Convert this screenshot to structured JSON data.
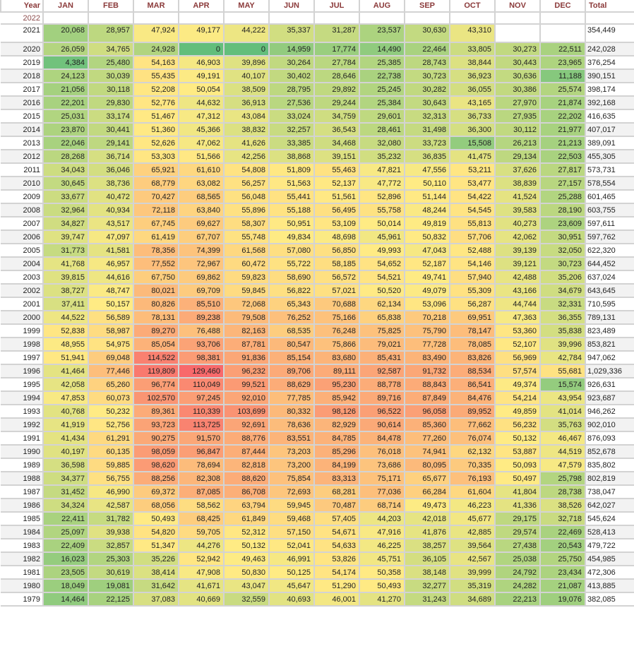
{
  "header": {
    "year": "Year",
    "months": [
      "JAN",
      "FEB",
      "MAR",
      "APR",
      "MAY",
      "JUN",
      "JUL",
      "AUG",
      "SEP",
      "OCT",
      "NOV",
      "DEC"
    ],
    "total": "Total"
  },
  "color_scale": {
    "low": "#63BE7B",
    "mid": "#FFEB84",
    "high": "#F8696B",
    "min_value": 0,
    "mid_value": 50000,
    "max_value": 129460
  },
  "rows": [
    {
      "year": "2022",
      "values": [
        null,
        null,
        null,
        null,
        null,
        null,
        null,
        null,
        null,
        null,
        null,
        null
      ],
      "total": null
    },
    {
      "year": "2021",
      "values": [
        "20,068",
        "28,957",
        "47,924",
        "49,177",
        "44,222",
        "35,337",
        "31,287",
        "23,537",
        "30,630",
        "43,310",
        null,
        null
      ],
      "total": "354,449"
    },
    {
      "year": "2020",
      "values": [
        "26,059",
        "34,765",
        "24,928",
        "0",
        "0",
        "14,959",
        "17,774",
        "14,490",
        "22,464",
        "33,805",
        "30,273",
        "22,511"
      ],
      "total": "242,028"
    },
    {
      "year": "2019",
      "values": [
        "4,384",
        "25,480",
        "54,163",
        "46,903",
        "39,896",
        "30,264",
        "27,784",
        "25,385",
        "28,743",
        "38,844",
        "30,443",
        "23,965"
      ],
      "total": "376,254"
    },
    {
      "year": "2018",
      "values": [
        "24,123",
        "30,039",
        "55,435",
        "49,191",
        "40,107",
        "30,402",
        "28,646",
        "22,738",
        "30,723",
        "36,923",
        "30,636",
        "11,188"
      ],
      "total": "390,151"
    },
    {
      "year": "2017",
      "values": [
        "21,056",
        "30,118",
        "52,208",
        "50,054",
        "38,509",
        "28,795",
        "29,892",
        "25,245",
        "30,282",
        "36,055",
        "30,386",
        "25,574"
      ],
      "total": "398,174"
    },
    {
      "year": "2016",
      "values": [
        "22,201",
        "29,830",
        "52,776",
        "44,632",
        "36,913",
        "27,536",
        "29,244",
        "25,384",
        "30,643",
        "43,165",
        "27,970",
        "21,874"
      ],
      "total": "392,168"
    },
    {
      "year": "2015",
      "values": [
        "25,031",
        "33,174",
        "51,467",
        "47,312",
        "43,084",
        "33,024",
        "34,759",
        "29,601",
        "32,313",
        "36,733",
        "27,935",
        "22,202"
      ],
      "total": "416,635"
    },
    {
      "year": "2014",
      "values": [
        "23,870",
        "30,441",
        "51,360",
        "45,366",
        "38,832",
        "32,257",
        "36,543",
        "28,461",
        "31,498",
        "36,300",
        "30,112",
        "21,977"
      ],
      "total": "407,017"
    },
    {
      "year": "2013",
      "values": [
        "22,046",
        "29,141",
        "52,626",
        "47,062",
        "41,626",
        "33,385",
        "34,468",
        "32,080",
        "33,723",
        "15,508",
        "26,213",
        "21,213"
      ],
      "total": "389,091"
    },
    {
      "year": "2012",
      "values": [
        "28,268",
        "36,714",
        "53,303",
        "51,566",
        "42,256",
        "38,868",
        "39,151",
        "35,232",
        "36,835",
        "41,475",
        "29,134",
        "22,503"
      ],
      "total": "455,305"
    },
    {
      "year": "2011",
      "values": [
        "34,043",
        "36,046",
        "65,921",
        "61,610",
        "54,808",
        "51,809",
        "55,463",
        "47,821",
        "47,556",
        "53,211",
        "37,626",
        "27,817"
      ],
      "total": "573,731"
    },
    {
      "year": "2010",
      "values": [
        "30,645",
        "38,736",
        "68,779",
        "63,082",
        "56,257",
        "51,563",
        "52,137",
        "47,772",
        "50,110",
        "53,477",
        "38,839",
        "27,157"
      ],
      "total": "578,554"
    },
    {
      "year": "2009",
      "values": [
        "33,677",
        "40,472",
        "70,427",
        "68,565",
        "56,048",
        "55,441",
        "51,561",
        "52,896",
        "51,144",
        "54,422",
        "41,524",
        "25,288"
      ],
      "total": "601,465"
    },
    {
      "year": "2008",
      "values": [
        "32,964",
        "40,934",
        "72,118",
        "63,840",
        "55,896",
        "55,188",
        "56,495",
        "55,758",
        "48,244",
        "54,545",
        "39,583",
        "28,190"
      ],
      "total": "603,755"
    },
    {
      "year": "2007",
      "values": [
        "34,827",
        "43,517",
        "67,745",
        "69,627",
        "58,307",
        "50,951",
        "53,109",
        "50,014",
        "49,819",
        "55,813",
        "40,273",
        "23,609"
      ],
      "total": "597,611"
    },
    {
      "year": "2006",
      "values": [
        "39,747",
        "47,097",
        "61,419",
        "67,707",
        "55,748",
        "49,834",
        "48,698",
        "45,961",
        "50,832",
        "57,706",
        "42,062",
        "30,951"
      ],
      "total": "597,762"
    },
    {
      "year": "2005",
      "values": [
        "31,773",
        "41,581",
        "78,356",
        "74,399",
        "61,568",
        "57,080",
        "56,850",
        "49,993",
        "47,043",
        "52,488",
        "39,139",
        "32,050"
      ],
      "total": "622,320"
    },
    {
      "year": "2004",
      "values": [
        "41,768",
        "46,957",
        "77,552",
        "72,967",
        "60,472",
        "55,722",
        "58,185",
        "54,652",
        "52,187",
        "54,146",
        "39,121",
        "30,723"
      ],
      "total": "644,452"
    },
    {
      "year": "2003",
      "values": [
        "39,815",
        "44,616",
        "67,750",
        "69,862",
        "59,823",
        "58,690",
        "56,572",
        "54,521",
        "49,741",
        "57,940",
        "42,488",
        "35,206"
      ],
      "total": "637,024"
    },
    {
      "year": "2002",
      "values": [
        "38,727",
        "48,747",
        "80,021",
        "69,709",
        "59,845",
        "56,822",
        "57,021",
        "50,520",
        "49,079",
        "55,309",
        "43,166",
        "34,679"
      ],
      "total": "643,645"
    },
    {
      "year": "2001",
      "values": [
        "37,411",
        "50,157",
        "80,826",
        "85,510",
        "72,068",
        "65,343",
        "70,688",
        "62,134",
        "53,096",
        "56,287",
        "44,744",
        "32,331"
      ],
      "total": "710,595"
    },
    {
      "year": "2000",
      "values": [
        "44,522",
        "56,589",
        "78,131",
        "89,238",
        "79,508",
        "76,252",
        "75,166",
        "65,838",
        "70,218",
        "69,951",
        "47,363",
        "36,355"
      ],
      "total": "789,131"
    },
    {
      "year": "1999",
      "values": [
        "52,838",
        "58,987",
        "89,270",
        "76,488",
        "82,163",
        "68,535",
        "76,248",
        "75,825",
        "75,790",
        "78,147",
        "53,360",
        "35,838"
      ],
      "total": "823,489"
    },
    {
      "year": "1998",
      "values": [
        "48,955",
        "54,975",
        "85,054",
        "93,706",
        "87,781",
        "80,547",
        "75,866",
        "79,021",
        "77,728",
        "78,085",
        "52,107",
        "39,996"
      ],
      "total": "853,821"
    },
    {
      "year": "1997",
      "values": [
        "51,941",
        "69,048",
        "114,522",
        "98,381",
        "91,836",
        "85,154",
        "83,680",
        "85,431",
        "83,490",
        "83,826",
        "56,969",
        "42,784"
      ],
      "total": "947,062"
    },
    {
      "year": "1996",
      "values": [
        "41,464",
        "77,446",
        "119,809",
        "129,460",
        "96,232",
        "89,706",
        "89,111",
        "92,587",
        "91,732",
        "88,534",
        "57,574",
        "55,681"
      ],
      "total": "1,029,336"
    },
    {
      "year": "1995",
      "values": [
        "42,058",
        "65,260",
        "96,774",
        "110,049",
        "99,521",
        "88,629",
        "95,230",
        "88,778",
        "88,843",
        "86,541",
        "49,374",
        "15,574"
      ],
      "total": "926,631"
    },
    {
      "year": "1994",
      "values": [
        "47,853",
        "60,073",
        "102,570",
        "97,245",
        "92,010",
        "77,785",
        "85,942",
        "89,716",
        "87,849",
        "84,476",
        "54,214",
        "43,954"
      ],
      "total": "923,687"
    },
    {
      "year": "1993",
      "values": [
        "40,768",
        "50,232",
        "89,361",
        "110,339",
        "103,699",
        "80,332",
        "98,126",
        "96,522",
        "96,058",
        "89,952",
        "49,859",
        "41,014"
      ],
      "total": "946,262"
    },
    {
      "year": "1992",
      "values": [
        "41,919",
        "52,756",
        "93,723",
        "113,725",
        "92,691",
        "78,636",
        "82,929",
        "90,614",
        "85,360",
        "77,662",
        "56,232",
        "35,763"
      ],
      "total": "902,010"
    },
    {
      "year": "1991",
      "values": [
        "41,434",
        "61,291",
        "90,275",
        "91,570",
        "88,776",
        "83,551",
        "84,785",
        "84,478",
        "77,260",
        "76,074",
        "50,132",
        "46,467"
      ],
      "total": "876,093"
    },
    {
      "year": "1990",
      "values": [
        "40,197",
        "60,135",
        "98,059",
        "96,847",
        "87,444",
        "73,203",
        "85,296",
        "76,018",
        "74,941",
        "62,132",
        "53,887",
        "44,519"
      ],
      "total": "852,678"
    },
    {
      "year": "1989",
      "values": [
        "36,598",
        "59,885",
        "98,620",
        "78,694",
        "82,818",
        "73,200",
        "84,199",
        "73,686",
        "80,095",
        "70,335",
        "50,093",
        "47,579"
      ],
      "total": "835,802"
    },
    {
      "year": "1988",
      "values": [
        "34,377",
        "56,755",
        "88,256",
        "82,308",
        "88,620",
        "75,854",
        "83,313",
        "75,171",
        "65,677",
        "76,193",
        "50,497",
        "25,798"
      ],
      "total": "802,819"
    },
    {
      "year": "1987",
      "values": [
        "31,452",
        "46,990",
        "69,372",
        "87,085",
        "86,708",
        "72,693",
        "68,281",
        "77,036",
        "66,284",
        "61,604",
        "41,804",
        "28,738"
      ],
      "total": "738,047"
    },
    {
      "year": "1986",
      "values": [
        "34,324",
        "42,587",
        "68,056",
        "58,562",
        "63,794",
        "59,945",
        "70,487",
        "68,714",
        "49,473",
        "46,223",
        "41,336",
        "38,526"
      ],
      "total": "642,027"
    },
    {
      "year": "1985",
      "values": [
        "22,411",
        "31,782",
        "50,493",
        "68,425",
        "61,849",
        "59,468",
        "57,405",
        "44,203",
        "42,018",
        "45,677",
        "29,175",
        "32,718"
      ],
      "total": "545,624"
    },
    {
      "year": "1984",
      "values": [
        "25,097",
        "39,938",
        "54,820",
        "59,705",
        "52,312",
        "57,150",
        "54,671",
        "47,916",
        "41,876",
        "42,885",
        "29,574",
        "22,469"
      ],
      "total": "528,413"
    },
    {
      "year": "1983",
      "values": [
        "22,409",
        "32,857",
        "51,347",
        "44,276",
        "50,132",
        "52,041",
        "54,633",
        "46,225",
        "38,257",
        "39,564",
        "27,438",
        "20,543"
      ],
      "total": "479,722"
    },
    {
      "year": "1982",
      "values": [
        "16,023",
        "25,303",
        "35,226",
        "52,942",
        "49,463",
        "46,991",
        "53,826",
        "45,751",
        "36,105",
        "42,567",
        "25,038",
        "25,750"
      ],
      "total": "454,985"
    },
    {
      "year": "1981",
      "values": [
        "23,505",
        "30,619",
        "38,414",
        "47,908",
        "50,830",
        "50,125",
        "54,174",
        "50,358",
        "38,148",
        "39,999",
        "24,792",
        "23,434"
      ],
      "total": "472,306"
    },
    {
      "year": "1980",
      "values": [
        "18,049",
        "19,081",
        "31,642",
        "41,671",
        "43,047",
        "45,647",
        "51,290",
        "50,493",
        "32,277",
        "35,319",
        "24,282",
        "21,087"
      ],
      "total": "413,885"
    },
    {
      "year": "1979",
      "values": [
        "14,464",
        "22,125",
        "37,083",
        "40,669",
        "32,559",
        "40,693",
        "46,001",
        "41,270",
        "31,243",
        "34,689",
        "22,213",
        "19,076"
      ],
      "total": "382,085"
    }
  ]
}
